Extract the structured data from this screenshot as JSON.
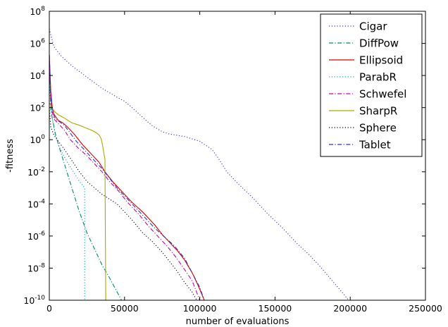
{
  "chart_data": {
    "type": "line",
    "title": "",
    "xlabel": "number of evaluations",
    "ylabel": "-fitness",
    "xlim": [
      0,
      250000
    ],
    "ylim_log10": [
      -10,
      8
    ],
    "yscale": "log",
    "grid": false,
    "legend_position": "top-right",
    "x_ticks": [
      {
        "value": 0,
        "label": "0"
      },
      {
        "value": 50000,
        "label": "50000"
      },
      {
        "value": 100000,
        "label": "100000"
      },
      {
        "value": 150000,
        "label": "150000"
      },
      {
        "value": 200000,
        "label": "200000"
      },
      {
        "value": 250000,
        "label": "250000"
      }
    ],
    "y_ticks": [
      {
        "log10": 8,
        "base": "10",
        "exp": "8"
      },
      {
        "log10": 6,
        "base": "10",
        "exp": "6"
      },
      {
        "log10": 4,
        "base": "10",
        "exp": "4"
      },
      {
        "log10": 2,
        "base": "10",
        "exp": "2"
      },
      {
        "log10": 0,
        "base": "10",
        "exp": "0"
      },
      {
        "log10": -2,
        "base": "10",
        "exp": "-2"
      },
      {
        "log10": -4,
        "base": "10",
        "exp": "-4"
      },
      {
        "log10": -6,
        "base": "10",
        "exp": "-6"
      },
      {
        "log10": -8,
        "base": "10",
        "exp": "-8"
      },
      {
        "log10": -10,
        "base": "10",
        "exp": "-10"
      }
    ],
    "series": [
      {
        "name": "Cigar",
        "color": "#3333bb",
        "dash": "dotted",
        "y_encoding": "log10",
        "points": [
          [
            0,
            6.9
          ],
          [
            3000,
            5.8
          ],
          [
            8000,
            5.2
          ],
          [
            15000,
            4.6
          ],
          [
            25000,
            3.9
          ],
          [
            35000,
            3.2
          ],
          [
            45000,
            2.65
          ],
          [
            50000,
            2.4
          ],
          [
            55000,
            2.0
          ],
          [
            62000,
            1.4
          ],
          [
            68000,
            0.9
          ],
          [
            75000,
            0.5
          ],
          [
            80000,
            0.35
          ],
          [
            90000,
            0.2
          ],
          [
            100000,
            -0.1
          ],
          [
            108000,
            -0.6
          ],
          [
            112000,
            -1.1
          ],
          [
            118000,
            -2.0
          ],
          [
            125000,
            -2.7
          ],
          [
            135000,
            -3.6
          ],
          [
            145000,
            -4.6
          ],
          [
            155000,
            -5.5
          ],
          [
            165000,
            -6.5
          ],
          [
            172000,
            -7.1
          ],
          [
            180000,
            -7.9
          ],
          [
            190000,
            -9.0
          ],
          [
            199000,
            -10.0
          ]
        ]
      },
      {
        "name": "DiffPow",
        "color": "#008866",
        "dash": "dashdot",
        "y_encoding": "log10",
        "points": [
          [
            0,
            5.3
          ],
          [
            1000,
            1.9
          ],
          [
            2000,
            1.3
          ],
          [
            4000,
            0.4
          ],
          [
            7000,
            -0.6
          ],
          [
            10000,
            -1.5
          ],
          [
            15000,
            -3.0
          ],
          [
            20000,
            -4.5
          ],
          [
            25000,
            -5.8
          ],
          [
            30000,
            -6.8
          ],
          [
            35000,
            -7.8
          ],
          [
            40000,
            -8.6
          ],
          [
            44000,
            -9.3
          ],
          [
            48000,
            -10.0
          ]
        ]
      },
      {
        "name": "Ellipsoid",
        "color": "#dd0000",
        "dash": "solid",
        "y_encoding": "log10",
        "points": [
          [
            0,
            5.3
          ],
          [
            1000,
            3.0
          ],
          [
            2000,
            2.0
          ],
          [
            3000,
            1.6
          ],
          [
            6000,
            1.2
          ],
          [
            9000,
            1.05
          ],
          [
            12000,
            0.8
          ],
          [
            17000,
            0.3
          ],
          [
            22000,
            -0.3
          ],
          [
            28000,
            -0.9
          ],
          [
            33000,
            -1.4
          ],
          [
            37000,
            -2.0
          ],
          [
            42000,
            -2.6
          ],
          [
            48000,
            -3.2
          ],
          [
            55000,
            -3.9
          ],
          [
            62000,
            -4.5
          ],
          [
            70000,
            -5.3
          ],
          [
            75000,
            -5.9
          ],
          [
            80000,
            -6.4
          ],
          [
            85000,
            -6.9
          ],
          [
            90000,
            -7.5
          ],
          [
            95000,
            -8.3
          ],
          [
            99000,
            -9.1
          ],
          [
            103000,
            -10.0
          ]
        ]
      },
      {
        "name": "ParabR",
        "color": "#00aaaa",
        "dash": "dotted",
        "y_encoding": "log10",
        "points": [
          [
            0,
            3.6
          ],
          [
            1000,
            2.0
          ],
          [
            2000,
            1.3
          ],
          [
            4000,
            0.3
          ],
          [
            6000,
            -0.3
          ],
          [
            9000,
            -0.9
          ],
          [
            12000,
            -1.4
          ],
          [
            16000,
            -2.0
          ],
          [
            20000,
            -2.6
          ],
          [
            23500,
            -3.0
          ],
          [
            23500,
            -10.0
          ]
        ]
      },
      {
        "name": "Schwefel",
        "color": "#cc00aa",
        "dash": "dashdot",
        "y_encoding": "log10",
        "points": [
          [
            0,
            5.0
          ],
          [
            1000,
            2.5
          ],
          [
            2000,
            1.7
          ],
          [
            3000,
            1.3
          ],
          [
            6000,
            1.0
          ],
          [
            10000,
            0.6
          ],
          [
            14000,
            0.0
          ],
          [
            19000,
            -0.5
          ],
          [
            25000,
            -1.0
          ],
          [
            30000,
            -1.5
          ],
          [
            35000,
            -2.0
          ],
          [
            40000,
            -2.6
          ],
          [
            46000,
            -3.2
          ],
          [
            52000,
            -3.9
          ],
          [
            60000,
            -4.7
          ],
          [
            66000,
            -5.4
          ],
          [
            73000,
            -6.1
          ],
          [
            78000,
            -6.6
          ],
          [
            84000,
            -7.3
          ],
          [
            90000,
            -8.1
          ],
          [
            95000,
            -8.8
          ],
          [
            100000,
            -10.0
          ]
        ]
      },
      {
        "name": "SharpR",
        "color": "#aaaa00",
        "dash": "solid",
        "y_encoding": "log10",
        "points": [
          [
            0,
            2.3
          ],
          [
            3000,
            1.8
          ],
          [
            6000,
            1.55
          ],
          [
            10000,
            1.35
          ],
          [
            15000,
            1.05
          ],
          [
            20000,
            0.9
          ],
          [
            25000,
            0.7
          ],
          [
            28000,
            0.6
          ],
          [
            31000,
            0.45
          ],
          [
            33000,
            0.3
          ],
          [
            34500,
            0.05
          ],
          [
            35500,
            -0.4
          ],
          [
            36500,
            -1.0
          ],
          [
            37000,
            -1.2
          ],
          [
            37500,
            -10.0
          ]
        ]
      },
      {
        "name": "Sphere",
        "color": "#000000",
        "dash": "dotted",
        "y_encoding": "log10",
        "points": [
          [
            0,
            2.0
          ],
          [
            1000,
            0.8
          ],
          [
            3000,
            0.3
          ],
          [
            6000,
            -0.1
          ],
          [
            10000,
            -0.6
          ],
          [
            15000,
            -1.3
          ],
          [
            20000,
            -2.0
          ],
          [
            25000,
            -2.6
          ],
          [
            30000,
            -3.0
          ],
          [
            35000,
            -3.4
          ],
          [
            40000,
            -3.7
          ],
          [
            45000,
            -4.0
          ],
          [
            50000,
            -4.5
          ],
          [
            55000,
            -5.0
          ],
          [
            62000,
            -5.8
          ],
          [
            68000,
            -6.3
          ],
          [
            75000,
            -7.0
          ],
          [
            80000,
            -7.6
          ],
          [
            85000,
            -8.2
          ],
          [
            90000,
            -8.9
          ],
          [
            95000,
            -9.5
          ],
          [
            98000,
            -10.0
          ]
        ]
      },
      {
        "name": "Tablet",
        "color": "#3333bb",
        "dash": "dashdot",
        "y_encoding": "log10",
        "points": [
          [
            0,
            5.3
          ],
          [
            1000,
            2.7
          ],
          [
            2000,
            1.8
          ],
          [
            4000,
            1.3
          ],
          [
            7000,
            1.1
          ],
          [
            10000,
            0.9
          ],
          [
            14000,
            0.4
          ],
          [
            18000,
            -0.1
          ],
          [
            23000,
            -0.6
          ],
          [
            29000,
            -1.2
          ],
          [
            35000,
            -1.8
          ],
          [
            40000,
            -2.4
          ],
          [
            45000,
            -3.0
          ],
          [
            52000,
            -3.7
          ],
          [
            58000,
            -4.3
          ],
          [
            64000,
            -4.9
          ],
          [
            70000,
            -5.5
          ],
          [
            77000,
            -6.1
          ],
          [
            83000,
            -6.6
          ],
          [
            90000,
            -7.4
          ],
          [
            95000,
            -8.3
          ],
          [
            100000,
            -9.2
          ],
          [
            103000,
            -10.0
          ]
        ]
      }
    ]
  }
}
